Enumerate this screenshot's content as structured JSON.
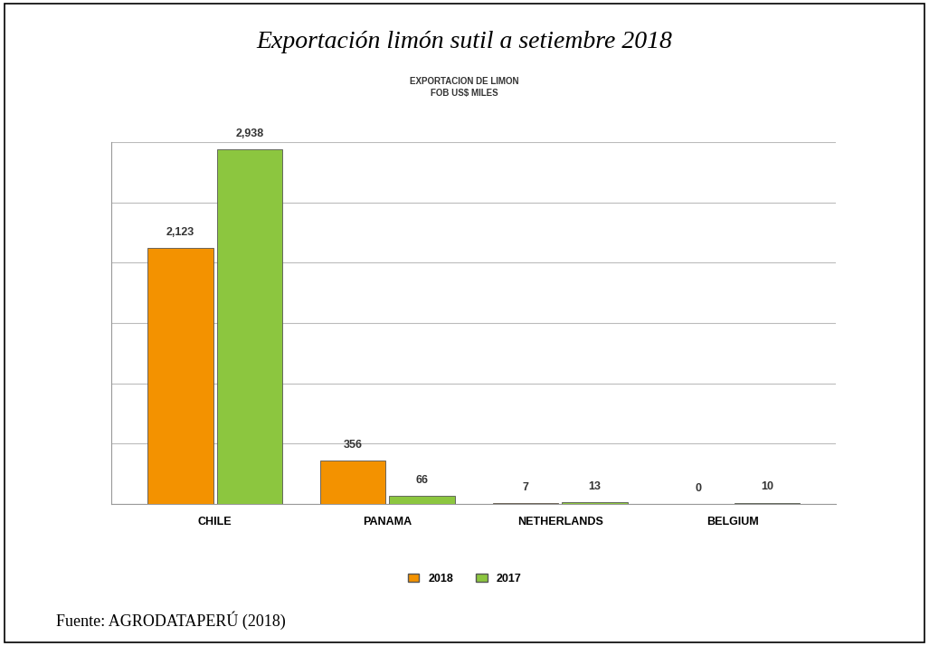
{
  "chart_data": {
    "type": "bar",
    "title": "Exportación limón sutil a setiembre 2018",
    "subtitle": "EXPORTACION DE LIMON\nFOB US$ MILES",
    "source": "Fuente: AGRODATAPERÚ (2018)",
    "categories": [
      "CHILE",
      "PANAMA",
      "NETHERLANDS",
      "BELGIUM"
    ],
    "series": [
      {
        "name": "2018",
        "color": "#f39200",
        "values": [
          2123,
          356,
          7,
          0
        ],
        "value_labels": [
          "2,123",
          "356",
          "7",
          "0"
        ]
      },
      {
        "name": "2017",
        "color": "#8cc63f",
        "values": [
          2938,
          66,
          13,
          10
        ],
        "value_labels": [
          "2,938",
          "66",
          "13",
          "10"
        ]
      }
    ],
    "ylim": [
      0,
      3000
    ],
    "yticks": [
      0,
      500,
      1000,
      1500,
      2000,
      2500,
      3000
    ],
    "grid": true,
    "data_labels": true,
    "tick_labels": "x",
    "legend": "lower center"
  }
}
